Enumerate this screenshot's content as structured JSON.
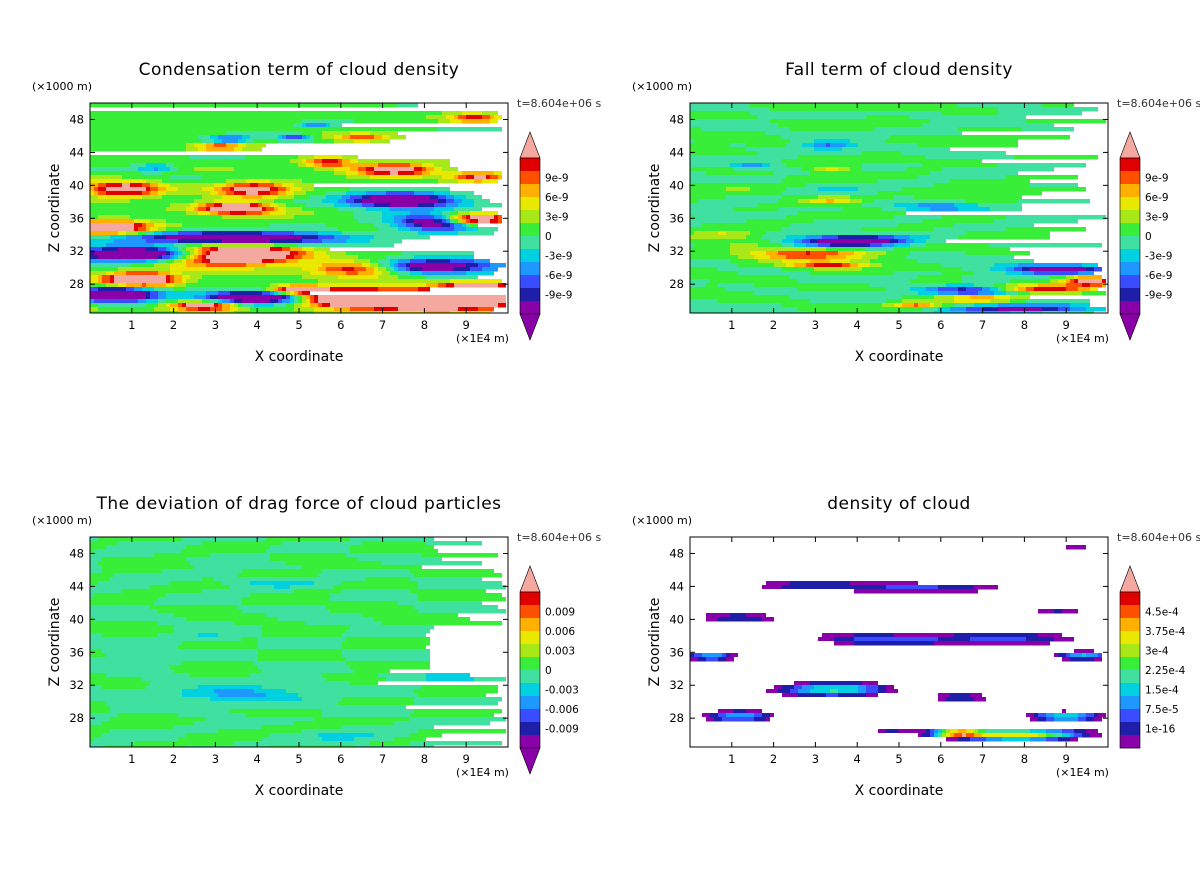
{
  "chart_data": [
    {
      "type": "heatmap",
      "title": "Condensation term of cloud density",
      "time_label": "t=8.604e+06 s",
      "xlabel": "X coordinate",
      "ylabel": "Z coordinate",
      "x_unit": "(×1E4 m)",
      "y_unit": "(×1000 m)",
      "xlim": [
        0,
        10
      ],
      "ylim": [
        24.5,
        50
      ],
      "x_ticks": [
        "1",
        "2",
        "3",
        "4",
        "5",
        "6",
        "7",
        "8",
        "9"
      ],
      "y_ticks": [
        "28",
        "32",
        "36",
        "40",
        "44",
        "48"
      ],
      "colorbar": {
        "labels": [
          "9e-9",
          "6e-9",
          "3e-9",
          "0",
          "-3e-9",
          "-6e-9",
          "-9e-9"
        ],
        "range": [
          -1.05e-08,
          1.05e-08
        ]
      },
      "pattern": "condensation"
    },
    {
      "type": "heatmap",
      "title": "Fall term of cloud density",
      "time_label": "t=8.604e+06 s",
      "xlabel": "X coordinate",
      "ylabel": "Z coordinate",
      "x_unit": "(×1E4 m)",
      "y_unit": "(×1000 m)",
      "xlim": [
        0,
        10
      ],
      "ylim": [
        24.5,
        50
      ],
      "x_ticks": [
        "1",
        "2",
        "3",
        "4",
        "5",
        "6",
        "7",
        "8",
        "9"
      ],
      "y_ticks": [
        "28",
        "32",
        "36",
        "40",
        "44",
        "48"
      ],
      "colorbar": {
        "labels": [
          "9e-9",
          "6e-9",
          "3e-9",
          "0",
          "-3e-9",
          "-6e-9",
          "-9e-9"
        ],
        "range": [
          -1.05e-08,
          1.05e-08
        ]
      },
      "pattern": "fall"
    },
    {
      "type": "heatmap",
      "title": "The deviation of drag force of cloud particles",
      "time_label": "t=8.604e+06 s",
      "xlabel": "X coordinate",
      "ylabel": "Z coordinate",
      "x_unit": "(×1E4 m)",
      "y_unit": "(×1000 m)",
      "xlim": [
        0,
        10
      ],
      "ylim": [
        24.5,
        50
      ],
      "x_ticks": [
        "1",
        "2",
        "3",
        "4",
        "5",
        "6",
        "7",
        "8",
        "9"
      ],
      "y_ticks": [
        "28",
        "32",
        "36",
        "40",
        "44",
        "48"
      ],
      "colorbar": {
        "labels": [
          "0.009",
          "0.006",
          "0.003",
          "0",
          "-0.003",
          "-0.006",
          "-0.009"
        ],
        "range": [
          -0.0105,
          0.0105
        ]
      },
      "pattern": "drag"
    },
    {
      "type": "heatmap",
      "title": "density of cloud",
      "time_label": "t=8.604e+06 s",
      "xlabel": "X coordinate",
      "ylabel": "Z coordinate",
      "x_unit": "(×1E4 m)",
      "y_unit": "(×1000 m)",
      "xlim": [
        0,
        10
      ],
      "ylim": [
        24.5,
        50
      ],
      "x_ticks": [
        "1",
        "2",
        "3",
        "4",
        "5",
        "6",
        "7",
        "8",
        "9"
      ],
      "y_ticks": [
        "28",
        "32",
        "36",
        "40",
        "44",
        "48"
      ],
      "colorbar": {
        "labels": [
          "4.5e-4",
          "3.75e-4",
          "3e-4",
          "2.25e-4",
          "1.5e-4",
          "7.5e-5",
          "1e-16"
        ],
        "range": [
          1e-16,
          0.000525
        ]
      },
      "pattern": "density"
    }
  ],
  "colors": {
    "palette": [
      "#8a00a8",
      "#1e1ea8",
      "#3a4cff",
      "#1e98ff",
      "#00d0e0",
      "#40e0a0",
      "#38ee38",
      "#a8e818",
      "#e8e800",
      "#ffb000",
      "#ff5000",
      "#e00000"
    ],
    "over": "#f4a8a0",
    "under": "#8a00a8",
    "empty": "#ffffff"
  }
}
